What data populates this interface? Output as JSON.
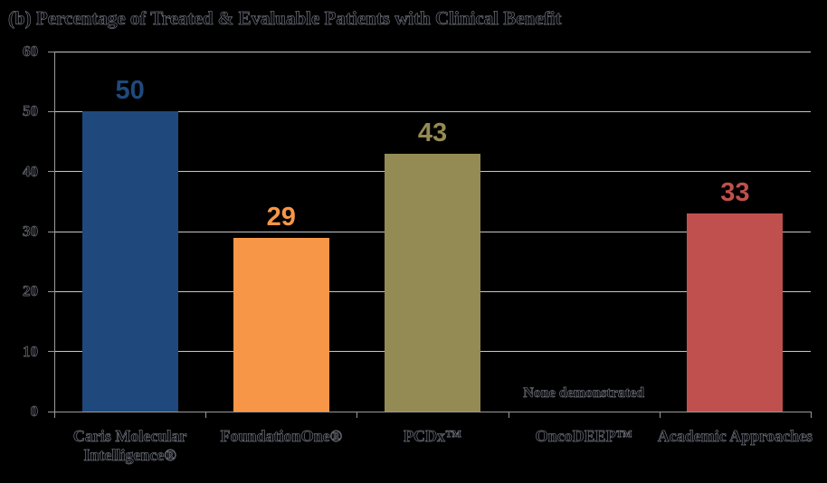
{
  "figure": {
    "background_color": "#000000"
  },
  "chart_data": {
    "type": "bar",
    "title": "(b) Percentage of Treated & Evaluable Patients with Clinical Benefit",
    "categories": [
      "Caris Molecular Intelligence®",
      "FoundationOne®",
      "PCDx™",
      "OncoDEEP™",
      "Academic Approaches"
    ],
    "values": [
      50,
      29,
      43,
      null,
      33
    ],
    "value_labels": [
      "50",
      "29",
      "43",
      null,
      "33"
    ],
    "bar_colors": [
      "#1F497D",
      "#F79646",
      "#948A54",
      null,
      "#C0504D"
    ],
    "missing_value_annotation": {
      "category": "OncoDEEP™",
      "category_index": 3,
      "text": "None demonstrated"
    },
    "xlabel": "",
    "ylabel": "",
    "ylim": [
      0,
      60
    ],
    "yticks": [
      60,
      50,
      40,
      30,
      20,
      10,
      0
    ],
    "grid": true,
    "legend": "none",
    "gridline_color": "#C6C6C6",
    "axis_color": "#9A9A9A",
    "text_color": "#08080E"
  }
}
